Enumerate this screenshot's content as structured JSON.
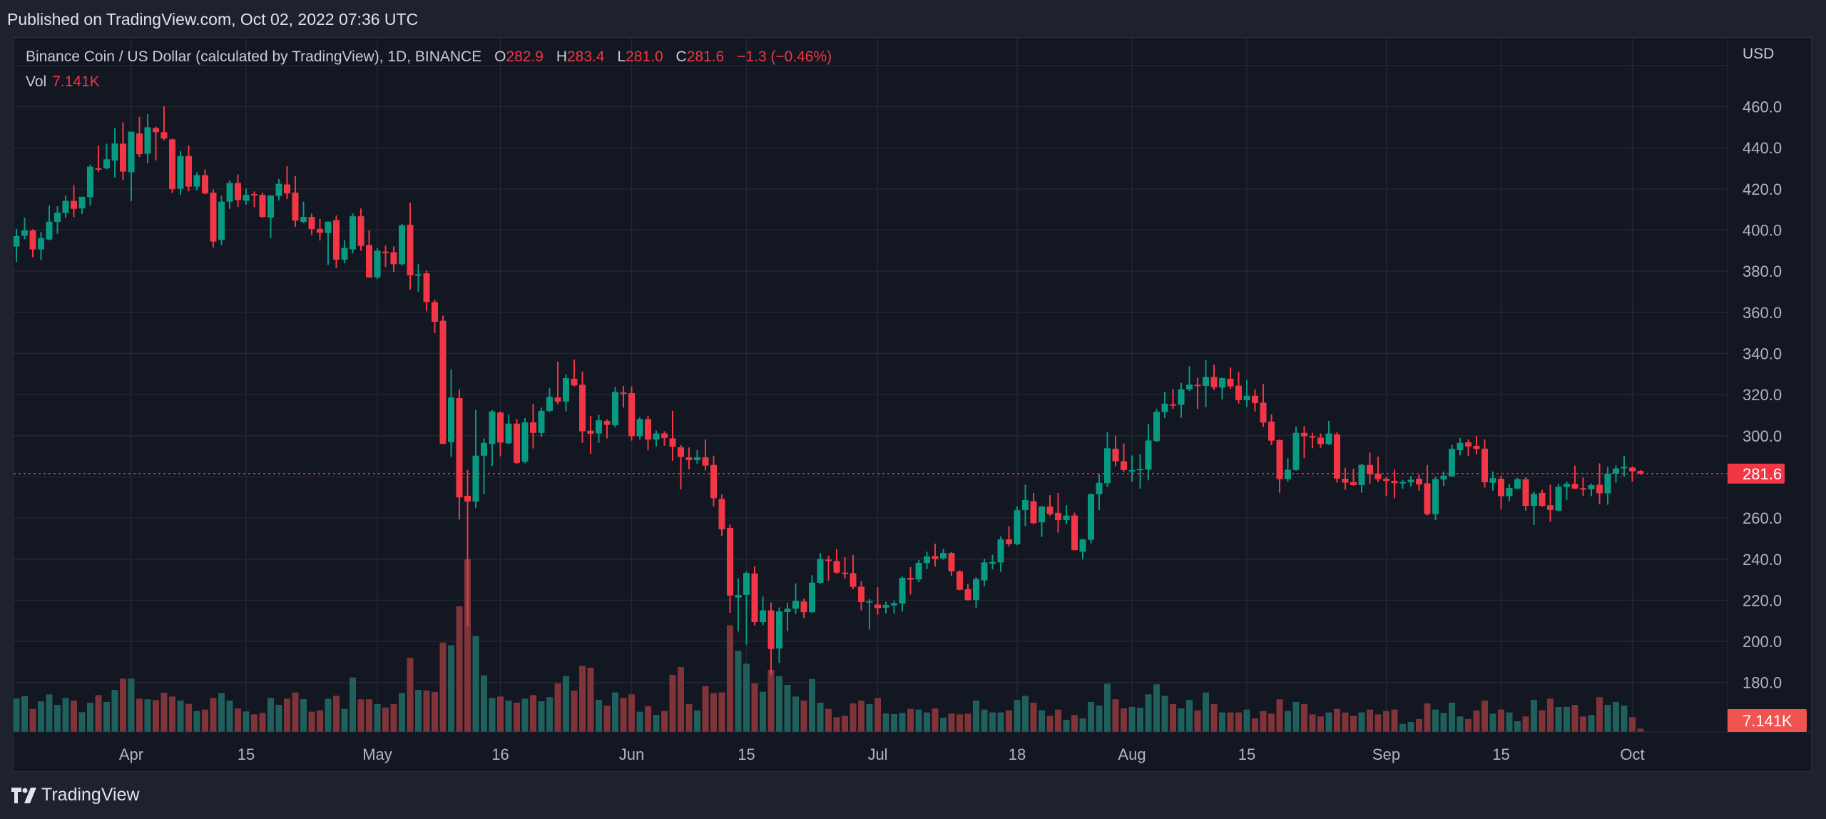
{
  "header": {
    "published": "Published on TradingView.com, Oct 02, 2022 07:36 UTC"
  },
  "legend": {
    "symbol": "Binance Coin / US Dollar (calculated by TradingView), 1D, BINANCE",
    "o_label": "O",
    "o": "282.9",
    "h_label": "H",
    "h": "283.4",
    "l_label": "L",
    "l": "281.0",
    "c_label": "C",
    "c": "281.6",
    "change": "−1.3 (−0.46%)",
    "vol_label": "Vol",
    "vol": "7.141K"
  },
  "price_axis": {
    "currency": "USD",
    "last_price_label": "281.6",
    "last_volume_label": "7.141K"
  },
  "footer": {
    "brand": "TradingView",
    "logo_icon": "tradingview-logo-icon"
  },
  "colors": {
    "up": "#089981",
    "down": "#F23645",
    "vol_up": "#1f5f5c",
    "vol_down": "#7e3439",
    "background": "#131722",
    "grid": "#232733"
  },
  "chart_data": {
    "type": "candlestick",
    "interval": "1D",
    "x_range": [
      "2022-03-18",
      "2022-10-02"
    ],
    "ylim": [
      170,
      485
    ],
    "y_ticks": [
      "460.0",
      "440.0",
      "420.0",
      "400.0",
      "380.0",
      "360.0",
      "340.0",
      "320.0",
      "300.0",
      "260.0",
      "240.0",
      "220.0",
      "200.0",
      "180.0"
    ],
    "y_tick_values": [
      460,
      440,
      420,
      400,
      380,
      360,
      340,
      320,
      300,
      260,
      240,
      220,
      200,
      180
    ],
    "x_ticks": [
      {
        "label": "Apr",
        "date": "2022-04-01"
      },
      {
        "label": "15",
        "date": "2022-04-15"
      },
      {
        "label": "May",
        "date": "2022-05-01"
      },
      {
        "label": "16",
        "date": "2022-05-16"
      },
      {
        "label": "Jun",
        "date": "2022-06-01"
      },
      {
        "label": "15",
        "date": "2022-06-15"
      },
      {
        "label": "Jul",
        "date": "2022-07-01"
      },
      {
        "label": "18",
        "date": "2022-07-18"
      },
      {
        "label": "Aug",
        "date": "2022-08-01"
      },
      {
        "label": "15",
        "date": "2022-08-15"
      },
      {
        "label": "Sep",
        "date": "2022-09-01"
      },
      {
        "label": "15",
        "date": "2022-09-15"
      },
      {
        "label": "Oct",
        "date": "2022-10-01"
      }
    ],
    "grid": true,
    "last_price": 281.6,
    "volume_unit": "K",
    "ohlc": [
      [
        392,
        400.6,
        384.5,
        397.1
      ],
      [
        397.2,
        406,
        395.5,
        399.8
      ],
      [
        399.8,
        400.4,
        386.8,
        390.6
      ],
      [
        390.6,
        399,
        385.4,
        396.1
      ],
      [
        395.4,
        411.9,
        395,
        404.1
      ],
      [
        404,
        411.6,
        398.2,
        408.5
      ],
      [
        408.3,
        416.8,
        406,
        414.2
      ],
      [
        414.2,
        421.8,
        406.3,
        410.3
      ],
      [
        410.5,
        416.2,
        407.8,
        416.2
      ],
      [
        416,
        431.8,
        411.9,
        430.8
      ],
      [
        430,
        441.1,
        428.2,
        429.8
      ],
      [
        430,
        442,
        429.5,
        434.4
      ],
      [
        433.8,
        449.5,
        425.6,
        442.1
      ],
      [
        442,
        452.4,
        424.3,
        428.4
      ],
      [
        428.1,
        447.8,
        414,
        447.8
      ],
      [
        447,
        455,
        435.5,
        436.9
      ],
      [
        437.1,
        456.3,
        432.5,
        450
      ],
      [
        449.6,
        450.3,
        433.9,
        447.6
      ],
      [
        447.6,
        460.2,
        443.7,
        444.5
      ],
      [
        444.1,
        444.5,
        418.1,
        419.9
      ],
      [
        420.1,
        438.4,
        417.1,
        436
      ],
      [
        436,
        441.1,
        418.8,
        421.1
      ],
      [
        421.1,
        428.1,
        419.4,
        426.7
      ],
      [
        426.7,
        429.5,
        417.4,
        417.8
      ],
      [
        418.2,
        419.7,
        391.6,
        394.4
      ],
      [
        395.2,
        416.7,
        392.7,
        413.8
      ],
      [
        413.8,
        424.2,
        410.3,
        422.9
      ],
      [
        422.9,
        427,
        411.2,
        414.6
      ],
      [
        414.3,
        420.1,
        412.4,
        417.1
      ],
      [
        417.5,
        418.8,
        411.2,
        417.1
      ],
      [
        417.1,
        418.1,
        405.9,
        406.4
      ],
      [
        406.1,
        416.8,
        396,
        416.8
      ],
      [
        416.6,
        424.8,
        414.4,
        422.5
      ],
      [
        422.2,
        431.1,
        415,
        417.8
      ],
      [
        418.2,
        426.2,
        401.6,
        404.6
      ],
      [
        404,
        413.8,
        403.4,
        406.4
      ],
      [
        406.4,
        408,
        397.5,
        400.5
      ],
      [
        400.6,
        405.5,
        394.9,
        398.7
      ],
      [
        398.6,
        404.1,
        383.1,
        404.1
      ],
      [
        404.8,
        407.1,
        381.5,
        385.6
      ],
      [
        385.6,
        395.2,
        383.8,
        391.3
      ],
      [
        390.6,
        408.1,
        388.6,
        406.7
      ],
      [
        406.7,
        410.5,
        390,
        392.3
      ],
      [
        392.7,
        399.8,
        376.9,
        376.9
      ],
      [
        377,
        391.3,
        376.2,
        390
      ],
      [
        389.5,
        392.4,
        382,
        389
      ],
      [
        389.2,
        392,
        379.7,
        383.4
      ],
      [
        383.4,
        403,
        382.7,
        402.3
      ],
      [
        402.6,
        413.3,
        371,
        378
      ],
      [
        378,
        383.5,
        370,
        378.5
      ],
      [
        379,
        380.4,
        360.5,
        365
      ],
      [
        365,
        366.2,
        349.9,
        355.4
      ],
      [
        355.9,
        358.4,
        295.9,
        296
      ],
      [
        296.9,
        332.3,
        289.8,
        318.6
      ],
      [
        318.3,
        322.6,
        259.2,
        270
      ],
      [
        270.8,
        283.4,
        207.5,
        268
      ],
      [
        268,
        312.6,
        264.8,
        290.3
      ],
      [
        290.3,
        298.7,
        271.6,
        296.5
      ],
      [
        296,
        312.4,
        285.2,
        311.8
      ],
      [
        311.3,
        311.8,
        290,
        296.7
      ],
      [
        296.3,
        310.2,
        295.9,
        305.9
      ],
      [
        305.9,
        308.1,
        286.3,
        286.8
      ],
      [
        287.4,
        308.6,
        286.6,
        306.5
      ],
      [
        306.5,
        315.4,
        293.8,
        301.4
      ],
      [
        301.4,
        313.7,
        299.4,
        312.1
      ],
      [
        312.1,
        323.2,
        311.5,
        318.9
      ],
      [
        318.6,
        336.1,
        315.3,
        316.6
      ],
      [
        316.6,
        329.8,
        311.8,
        328
      ],
      [
        327.7,
        337.1,
        324,
        324.5
      ],
      [
        324.8,
        331.2,
        296.5,
        302.2
      ],
      [
        302.5,
        309.6,
        291.1,
        300.9
      ],
      [
        301.1,
        310.2,
        296.6,
        307.5
      ],
      [
        307.2,
        308,
        298.7,
        305.3
      ],
      [
        305.1,
        323.7,
        304,
        321.3
      ],
      [
        321,
        324.2,
        313.7,
        320.7
      ],
      [
        320.7,
        324,
        297.6,
        299.8
      ],
      [
        299.8,
        309.1,
        298.2,
        308.1
      ],
      [
        308.1,
        309.7,
        293,
        298.1
      ],
      [
        298.1,
        302.5,
        294.7,
        301.1
      ],
      [
        301.1,
        302.2,
        295.1,
        298.9
      ],
      [
        298.7,
        312.1,
        287.9,
        294.7
      ],
      [
        294.4,
        295.4,
        273.9,
        289.7
      ],
      [
        289.5,
        294.3,
        283.6,
        288.1
      ],
      [
        288.1,
        293.1,
        286.3,
        289.5
      ],
      [
        289.5,
        298.2,
        283.1,
        285.5
      ],
      [
        285.8,
        290.3,
        265.6,
        269.6
      ],
      [
        269.3,
        271.5,
        251.3,
        254.5
      ],
      [
        255.2,
        256.8,
        213.9,
        222.3
      ],
      [
        221.3,
        230.6,
        204.8,
        222.6
      ],
      [
        222.6,
        234.1,
        198.4,
        233.3
      ],
      [
        233,
        236.5,
        207.8,
        209.4
      ],
      [
        209.4,
        221.8,
        207.8,
        215.1
      ],
      [
        215.1,
        218.9,
        183.6,
        196.3
      ],
      [
        196.6,
        216.5,
        189.5,
        214.6
      ],
      [
        214.3,
        218.9,
        205.1,
        215.9
      ],
      [
        215.9,
        228.2,
        213.4,
        219.7
      ],
      [
        219.4,
        220.7,
        211.4,
        214.2
      ],
      [
        214.2,
        232.2,
        213.8,
        228.6
      ],
      [
        228.5,
        243,
        228,
        240.1
      ],
      [
        239.8,
        241.7,
        229.4,
        239.6
      ],
      [
        239.1,
        244.9,
        232.8,
        233.4
      ],
      [
        233.4,
        241,
        230.6,
        233.2
      ],
      [
        233.2,
        242,
        225.5,
        226.5
      ],
      [
        226.6,
        229.4,
        215.1,
        219.1
      ],
      [
        219.1,
        220.5,
        205.8,
        219.6
      ],
      [
        217.9,
        226.3,
        213,
        216.2
      ],
      [
        216.4,
        219.3,
        213.6,
        217.7
      ],
      [
        217.5,
        219.7,
        213.6,
        218.6
      ],
      [
        218.4,
        231.5,
        214.5,
        230.9
      ],
      [
        230.9,
        236.1,
        222.8,
        230.1
      ],
      [
        230.1,
        239.6,
        228.8,
        238.2
      ],
      [
        238.1,
        243.6,
        235.2,
        241.3
      ],
      [
        241.5,
        247.5,
        236.4,
        240.1
      ],
      [
        240.4,
        245,
        239.8,
        243
      ],
      [
        243,
        243.4,
        231.8,
        234.1
      ],
      [
        234,
        234.6,
        224.8,
        225.1
      ],
      [
        225.4,
        228,
        219.8,
        220.1
      ],
      [
        220.1,
        231.2,
        216.2,
        230.3
      ],
      [
        229.7,
        240.1,
        226.9,
        238.4
      ],
      [
        237.8,
        242.2,
        235,
        238.6
      ],
      [
        238.4,
        251.1,
        233.8,
        249.6
      ],
      [
        249.6,
        256,
        246.3,
        247.3
      ],
      [
        247.3,
        265.6,
        246.8,
        263.8
      ],
      [
        263.8,
        276.2,
        256,
        268.7
      ],
      [
        268.2,
        272.2,
        256.9,
        257.5
      ],
      [
        257.9,
        265.8,
        250.8,
        265.6
      ],
      [
        265.6,
        271.1,
        261,
        261.9
      ],
      [
        262.5,
        272.2,
        252.9,
        259
      ],
      [
        259,
        266.2,
        256.9,
        261.2
      ],
      [
        261.2,
        262.6,
        244.2,
        244.4
      ],
      [
        243.6,
        249.8,
        239.8,
        249.6
      ],
      [
        249.4,
        271.9,
        247.7,
        271.6
      ],
      [
        271.6,
        281.5,
        263.8,
        277.1
      ],
      [
        276.9,
        301.8,
        275.1,
        293.9
      ],
      [
        293.7,
        300,
        285.2,
        287.6
      ],
      [
        287.6,
        296.2,
        282.4,
        283.3
      ],
      [
        283,
        290.4,
        277.7,
        283.3
      ],
      [
        283.3,
        291,
        274.3,
        283.9
      ],
      [
        283.5,
        305.7,
        278.3,
        297.7
      ],
      [
        297.4,
        313,
        297,
        311.6
      ],
      [
        311.5,
        321.4,
        308.6,
        315.6
      ],
      [
        315.3,
        322.8,
        313,
        315
      ],
      [
        315,
        325.7,
        308.6,
        322.6
      ],
      [
        322.6,
        333.8,
        321.7,
        324.8
      ],
      [
        324.8,
        328.2,
        313,
        324.5
      ],
      [
        324.2,
        336.7,
        313.9,
        328.6
      ],
      [
        328.6,
        334.6,
        322.2,
        323.6
      ],
      [
        323.4,
        328.3,
        317.8,
        328
      ],
      [
        327.7,
        333.2,
        322.8,
        324
      ],
      [
        324.3,
        331.1,
        315.6,
        317.3
      ],
      [
        317.3,
        327.2,
        313.9,
        319.4
      ],
      [
        319.4,
        322.5,
        311.8,
        315.9
      ],
      [
        316.1,
        325.1,
        304.3,
        306.4
      ],
      [
        306.9,
        310.4,
        295.4,
        297.6
      ],
      [
        297.9,
        298.2,
        272.3,
        278.9
      ],
      [
        278.9,
        289.1,
        277.7,
        283.5
      ],
      [
        283.3,
        304.5,
        283,
        301.4
      ],
      [
        301.4,
        304.7,
        289.1,
        299.7
      ],
      [
        299.8,
        301.4,
        293.9,
        299.1
      ],
      [
        299.1,
        301.1,
        294.1,
        295.9
      ],
      [
        295.9,
        307.2,
        295.5,
        301.1
      ],
      [
        300.7,
        301.7,
        277.2,
        279.2
      ],
      [
        279.1,
        284.4,
        273.7,
        277.2
      ],
      [
        277.5,
        283.9,
        275.8,
        276
      ],
      [
        276,
        286.4,
        272.3,
        285.8
      ],
      [
        285.8,
        291.8,
        276.6,
        281.2
      ],
      [
        281.6,
        289.9,
        277.5,
        278.9
      ],
      [
        279.1,
        280,
        270.6,
        278
      ],
      [
        278.1,
        283.5,
        269.6,
        276.9
      ],
      [
        277.1,
        278.6,
        274.3,
        277.5
      ],
      [
        277.4,
        280.4,
        275.4,
        278.6
      ],
      [
        279.1,
        281.1,
        273.3,
        276.3
      ],
      [
        276.9,
        285.8,
        261.2,
        261.9
      ],
      [
        261.9,
        280,
        259,
        278.9
      ],
      [
        278.7,
        282.6,
        275.6,
        280.6
      ],
      [
        280.3,
        295.6,
        280,
        293.6
      ],
      [
        293,
        298.9,
        290.4,
        296.5
      ],
      [
        296.8,
        298.2,
        290.2,
        294.8
      ],
      [
        295.1,
        299.9,
        291,
        293.6
      ],
      [
        293.7,
        298.2,
        274.8,
        277.4
      ],
      [
        277.1,
        282.6,
        273.3,
        279.4
      ],
      [
        279.1,
        280.6,
        264.2,
        270.6
      ],
      [
        270.6,
        276.6,
        268.2,
        274.6
      ],
      [
        274.3,
        279.5,
        274,
        278.9
      ],
      [
        278.8,
        279.8,
        263.6,
        265.9
      ],
      [
        265.9,
        272.9,
        256.6,
        271.7
      ],
      [
        272.2,
        273.7,
        265.4,
        265.9
      ],
      [
        266.2,
        276.2,
        258.1,
        263.9
      ],
      [
        263.6,
        276.6,
        263.4,
        275.2
      ],
      [
        275.1,
        277.7,
        268.8,
        276.6
      ],
      [
        276.6,
        285.5,
        274,
        274.3
      ],
      [
        274.5,
        279.7,
        270.8,
        274.2
      ],
      [
        274,
        276.8,
        270.6,
        276
      ],
      [
        276.2,
        286.6,
        266.7,
        272
      ],
      [
        272,
        284.9,
        266.4,
        281.6
      ],
      [
        281.6,
        285.6,
        277.1,
        284.1
      ],
      [
        284.1,
        290.2,
        280.3,
        284.9
      ],
      [
        284.5,
        285.2,
        277.7,
        282.7
      ],
      [
        282.9,
        283.4,
        281,
        281.6
      ]
    ],
    "volume": [
      71.5,
      76.6,
      49.2,
      65.4,
      80.1,
      57.8,
      72.5,
      66.9,
      42.1,
      62.4,
      78.6,
      63.9,
      89.7,
      113.6,
      113.6,
      71.0,
      69.5,
      67.9,
      83.7,
      75.5,
      66.9,
      60.0,
      44.6,
      47.7,
      72.5,
      83.1,
      66.9,
      50.2,
      43.6,
      37.5,
      40.6,
      72.5,
      57.8,
      71.0,
      84.2,
      70.0,
      43.1,
      46.1,
      71.0,
      77.1,
      49.2,
      116.1,
      69.5,
      69.5,
      59.3,
      52.2,
      59.3,
      83.1,
      158.2,
      89.7,
      88.2,
      85.2,
      190.6,
      184.5,
      267.7,
      368.1,
      204.8,
      120.7,
      72.5,
      75.5,
      66.9,
      62.4,
      71.0,
      78.6,
      65.4,
      74.0,
      103.4,
      119.1,
      88.2,
      140.9,
      136.9,
      68.4,
      56.3,
      84.2,
      72.5,
      80.1,
      43.1,
      54.8,
      36.5,
      44.6,
      121.7,
      138.4,
      59.3,
      46.1,
      97.3,
      82.6,
      84.2,
      227.1,
      172.9,
      145.5,
      103.4,
      85.7,
      132.3,
      119.1,
      100.4,
      75.5,
      66.9,
      113.1,
      62.4,
      49.2,
      31.4,
      34.5,
      60.8,
      66.9,
      59.3,
      72.5,
      39.5,
      38.0,
      40.6,
      49.2,
      47.7,
      41.6,
      50.2,
      30.4,
      39.0,
      37.5,
      39.0,
      66.9,
      47.7,
      41.6,
      41.6,
      46.1,
      68.4,
      77.1,
      62.4,
      46.1,
      34.5,
      47.7,
      25.9,
      36.0,
      28.9,
      63.9,
      56.3,
      102.9,
      69.5,
      50.2,
      53.2,
      51.7,
      80.1,
      101.4,
      77.1,
      59.3,
      50.2,
      68.4,
      46.1,
      84.2,
      59.3,
      41.6,
      41.6,
      41.6,
      47.7,
      28.9,
      44.6,
      39.0,
      69.5,
      44.6,
      63.9,
      59.3,
      37.5,
      33.0,
      41.6,
      49.2,
      41.6,
      34.5,
      41.6,
      47.7,
      37.5,
      44.6,
      47.7,
      17.2,
      21.3,
      27.4,
      60.8,
      47.7,
      40.6,
      62.4,
      33.0,
      27.4,
      46.1,
      66.9,
      39.0,
      47.7,
      41.6,
      22.8,
      33.0,
      68.4,
      46.1,
      71.0,
      53.2,
      53.2,
      57.8,
      33.0,
      36.0,
      74.0,
      57.8,
      63.9,
      56.3,
      31.4,
      7.141
    ]
  }
}
